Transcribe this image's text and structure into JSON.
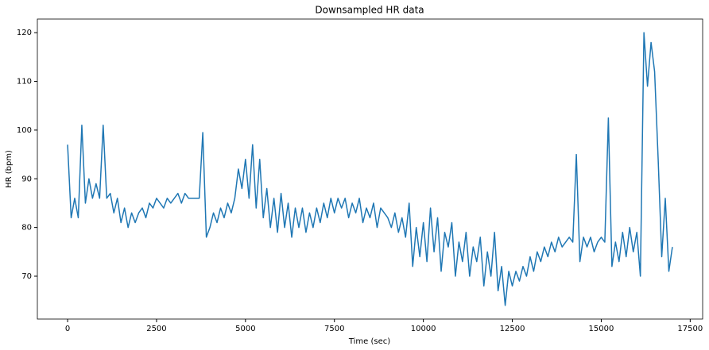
{
  "chart_data": {
    "type": "line",
    "title": "Downsampled HR data",
    "x_label": "Time (sec)",
    "y_label": "HR (bpm)",
    "x": [
      0,
      100,
      200,
      300,
      400,
      500,
      600,
      700,
      800,
      900,
      1000,
      1100,
      1200,
      1300,
      1400,
      1500,
      1600,
      1700,
      1800,
      1900,
      2000,
      2100,
      2200,
      2300,
      2400,
      2500,
      2600,
      2700,
      2800,
      2900,
      3000,
      3100,
      3200,
      3300,
      3400,
      3500,
      3600,
      3700,
      3800,
      3900,
      4000,
      4100,
      4200,
      4300,
      4400,
      4500,
      4600,
      4700,
      4800,
      4900,
      5000,
      5100,
      5200,
      5300,
      5400,
      5500,
      5600,
      5700,
      5800,
      5900,
      6000,
      6100,
      6200,
      6300,
      6400,
      6500,
      6600,
      6700,
      6800,
      6900,
      7000,
      7100,
      7200,
      7300,
      7400,
      7500,
      7600,
      7700,
      7800,
      7900,
      8000,
      8100,
      8200,
      8300,
      8400,
      8500,
      8600,
      8700,
      8800,
      8900,
      9000,
      9100,
      9200,
      9300,
      9400,
      9500,
      9600,
      9700,
      9800,
      9900,
      10000,
      10100,
      10200,
      10300,
      10400,
      10500,
      10600,
      10700,
      10800,
      10900,
      11000,
      11100,
      11200,
      11300,
      11400,
      11500,
      11600,
      11700,
      11800,
      11900,
      12000,
      12100,
      12200,
      12300,
      12400,
      12500,
      12600,
      12700,
      12800,
      12900,
      13000,
      13100,
      13200,
      13300,
      13400,
      13500,
      13600,
      13700,
      13800,
      13900,
      14000,
      14100,
      14200,
      14300,
      14400,
      14500,
      14600,
      14700,
      14800,
      14900,
      15000,
      15100,
      15200,
      15300,
      15400,
      15500,
      15600,
      15700,
      15800,
      15900,
      16000,
      16100,
      16200,
      16300,
      16400,
      16500,
      16600,
      16700,
      16800,
      16900,
      17000
    ],
    "series": [
      {
        "color": "#1f77b4",
        "values": [
          97,
          82,
          86,
          82,
          101,
          85,
          90,
          86,
          89,
          86,
          101,
          86,
          87,
          83,
          86,
          81,
          84,
          80,
          83,
          81,
          83,
          84,
          82,
          85,
          84,
          86,
          85,
          84,
          86,
          85,
          86,
          87,
          85,
          87,
          86,
          86,
          86,
          86,
          99.5,
          78,
          80,
          83,
          81,
          84,
          82,
          85,
          83,
          86,
          92,
          88,
          94,
          86,
          97,
          84,
          94,
          82,
          88,
          80,
          86,
          79,
          87,
          80,
          85,
          78,
          84,
          80,
          84,
          79,
          83,
          80,
          84,
          81,
          85,
          82,
          86,
          83,
          86,
          84,
          86,
          82,
          85,
          83,
          86,
          81,
          84,
          82,
          85,
          80,
          84,
          83,
          82,
          80,
          83,
          79,
          82,
          78,
          85,
          72,
          80,
          74,
          81,
          73,
          84,
          75,
          82,
          71,
          79,
          76,
          81,
          70,
          77,
          73,
          79,
          70,
          76,
          73,
          78,
          68,
          75,
          70,
          79,
          67,
          72,
          64,
          71,
          68,
          71,
          69,
          72,
          70,
          74,
          71,
          75,
          73,
          76,
          74,
          77,
          75,
          78,
          76,
          77,
          78,
          77,
          95,
          73,
          78,
          76,
          78,
          75,
          77,
          78,
          77,
          102.5,
          72,
          77,
          73,
          79,
          74,
          80,
          75,
          79,
          70,
          120,
          109,
          118,
          112,
          94,
          74,
          86,
          71,
          76
        ]
      }
    ],
    "xlim": [
      -850,
      17850
    ],
    "ylim": [
      61.2,
      122.8
    ],
    "xticks": [
      0,
      2500,
      5000,
      7500,
      10000,
      12500,
      15000,
      17500
    ],
    "yticks": [
      70,
      80,
      90,
      100,
      110,
      120
    ]
  }
}
